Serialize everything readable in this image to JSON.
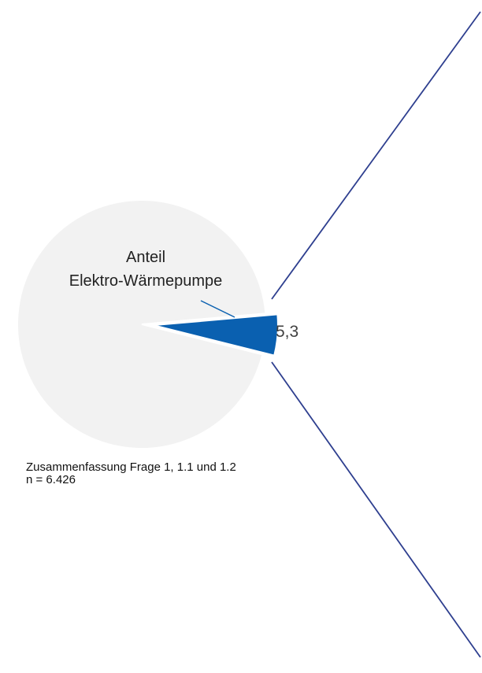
{
  "chart_data": {
    "type": "pie",
    "categories": [
      "Anteil\nElektro-Wärmepumpe",
      null
    ],
    "values": [
      5.3,
      94.7
    ],
    "value_labels": [
      "5,3",
      null
    ],
    "colors": [
      "#0a60b0",
      "#f2f2f2"
    ],
    "annotations": [
      "Zusammenfassung Frage 1, 1.1 und 1.2",
      "n = 6.426"
    ]
  }
}
